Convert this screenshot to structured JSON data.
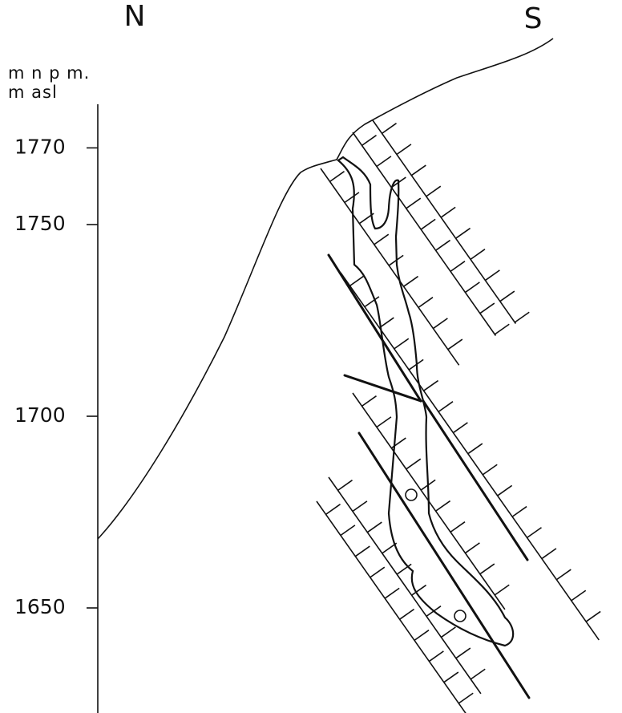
{
  "labels": {
    "north": "N",
    "south": "S",
    "unit_local": "m n p m.",
    "unit_english": "m asl"
  },
  "axis": {
    "ticks": [
      1770,
      1750,
      1700,
      1650
    ]
  }
}
